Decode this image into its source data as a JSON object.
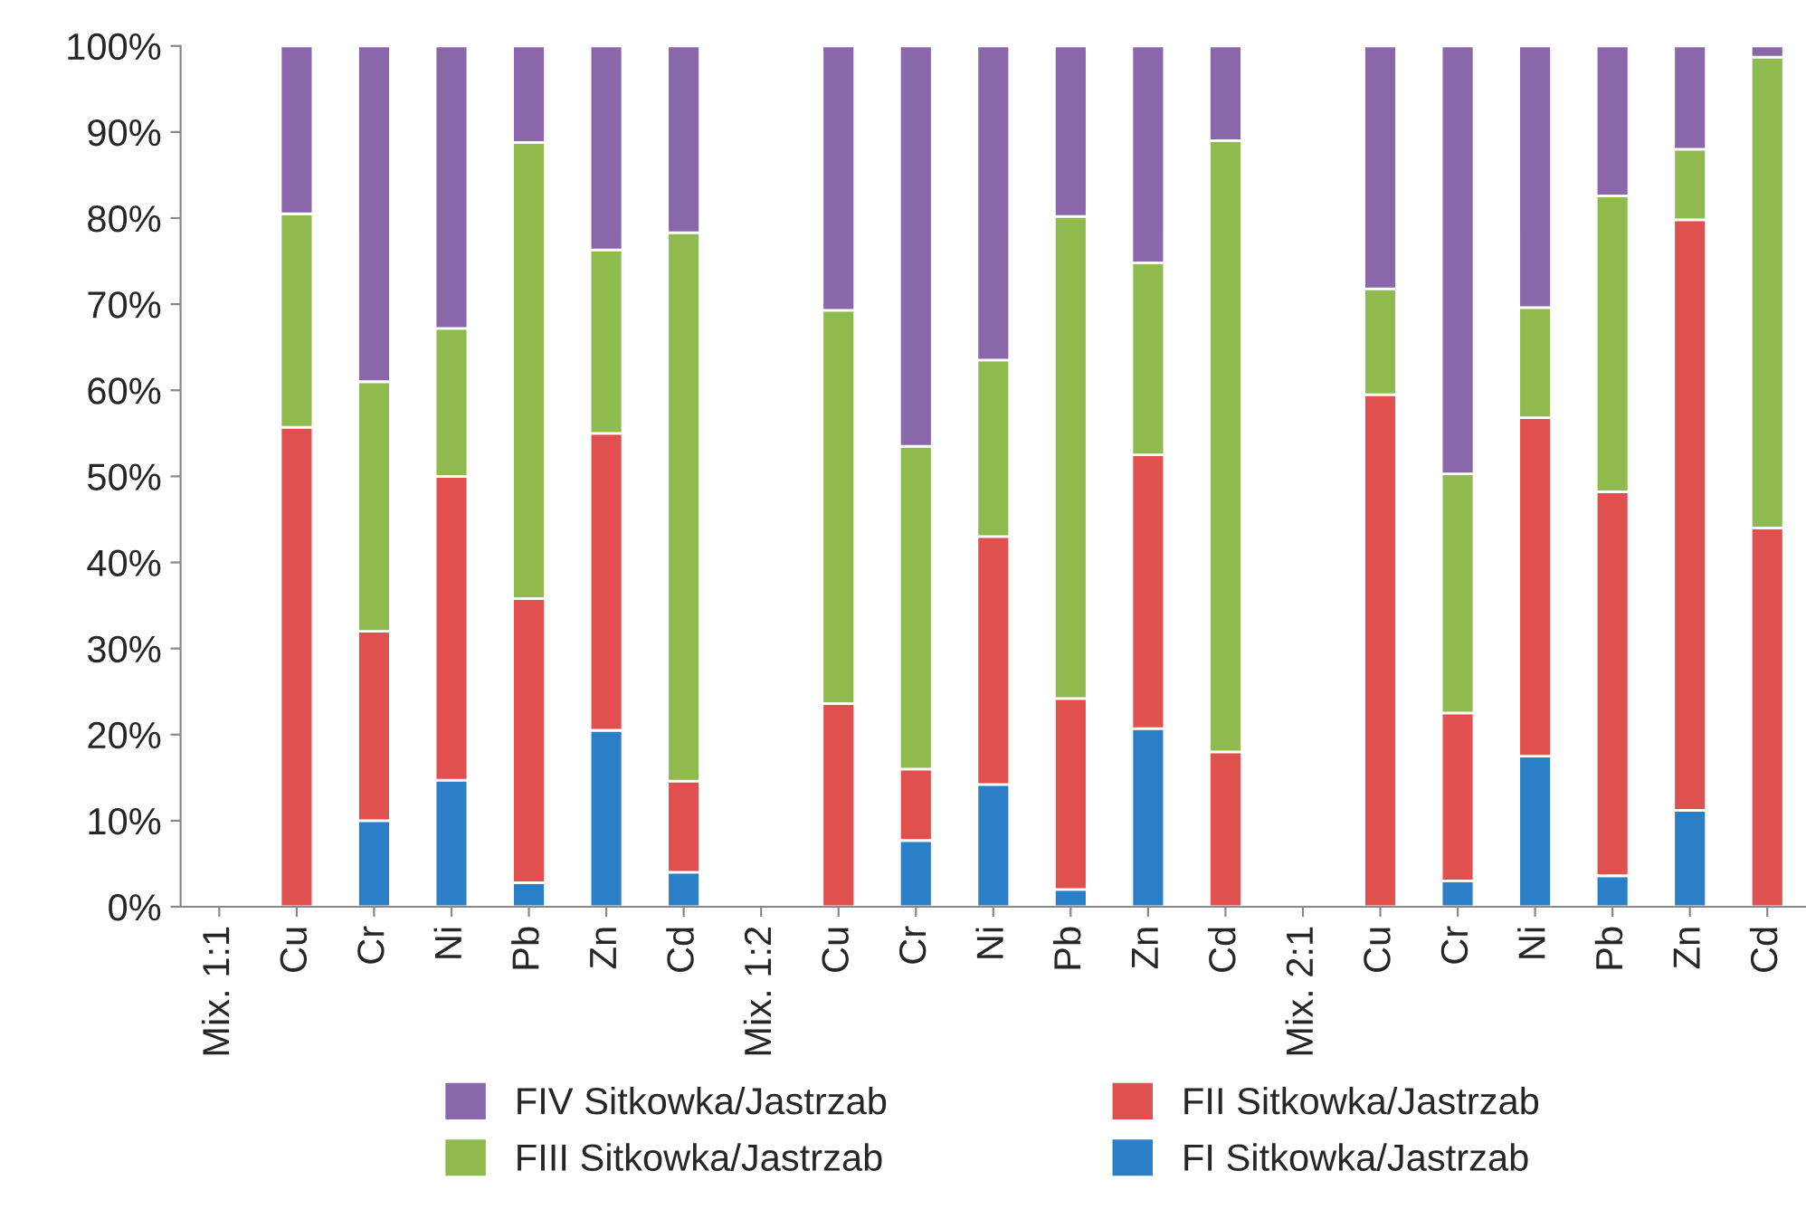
{
  "chart_data": {
    "type": "bar",
    "stacked": true,
    "categories": [
      "Mix. 1:1",
      "Cu",
      "Cr",
      "Ni",
      "Pb",
      "Zn",
      "Cd",
      "Mix. 1:2",
      "Cu",
      "Cr",
      "Ni",
      "Pb",
      "Zn",
      "Cd",
      "Mix. 2:1",
      "Cu",
      "Cr",
      "Ni",
      "Pb",
      "Zn",
      "Cd"
    ],
    "series": [
      {
        "name": "FI Sitkowka/Jastrzab",
        "color": "#2a7fc6",
        "values": [
          null,
          0,
          10,
          14.7,
          2.8,
          20.5,
          4,
          null,
          0,
          7.7,
          14.2,
          2,
          20.7,
          0,
          null,
          0,
          3,
          17.5,
          3.6,
          11.2,
          0
        ]
      },
      {
        "name": "FII Sitkowka/Jastrzab",
        "color": "#e0504e",
        "values": [
          null,
          55.7,
          22,
          35.3,
          33,
          34.5,
          10.6,
          null,
          23.6,
          8.3,
          28.8,
          22.2,
          31.8,
          18,
          null,
          59.5,
          19.5,
          39.3,
          44.6,
          68.6,
          44
        ]
      },
      {
        "name": "FIII Sitkowka/Jastrzab",
        "color": "#8fbb4e",
        "values": [
          null,
          24.8,
          29,
          17.2,
          53,
          21.3,
          63.7,
          null,
          45.7,
          37.5,
          20.5,
          56,
          22.3,
          71,
          null,
          12.3,
          27.8,
          12.8,
          34.4,
          8.2,
          54.7
        ]
      },
      {
        "name": "FIV Sitkowka/Jastrzab",
        "color": "#8a66aa",
        "values": [
          null,
          19.5,
          39,
          32.8,
          11.2,
          23.7,
          21.7,
          null,
          30.7,
          46.5,
          36.5,
          19.8,
          25.2,
          11,
          null,
          28.2,
          49.7,
          30.4,
          17.4,
          12,
          1.3
        ]
      }
    ],
    "ylim": [
      0,
      100
    ],
    "yticks": [
      {
        "value": 0,
        "label": "0%"
      },
      {
        "value": 10,
        "label": "10%"
      },
      {
        "value": 20,
        "label": "20%"
      },
      {
        "value": 30,
        "label": "30%"
      },
      {
        "value": 40,
        "label": "40%"
      },
      {
        "value": 50,
        "label": "50%"
      },
      {
        "value": 60,
        "label": "60%"
      },
      {
        "value": 70,
        "label": "70%"
      },
      {
        "value": 80,
        "label": "80%"
      },
      {
        "value": 90,
        "label": "90%"
      },
      {
        "value": 100,
        "label": "100%"
      }
    ],
    "grid": false,
    "legend": "bottom"
  }
}
